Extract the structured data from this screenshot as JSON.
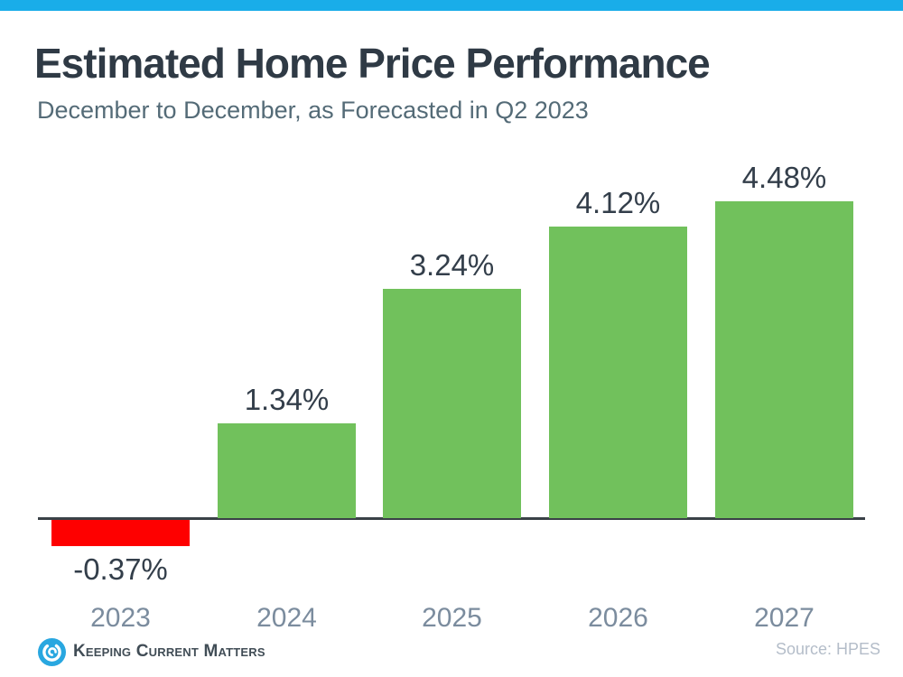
{
  "page": {
    "title": "Estimated Home Price Performance",
    "subtitle": "December to December, as Forecasted in Q2 2023",
    "brand": "Keeping Current Matters",
    "source": "Source: HPES"
  },
  "colors": {
    "accent_bar": "#19ade9",
    "positive": "#71c15c",
    "negative": "#fe0000",
    "title_text": "#2f3a45",
    "subtitle_text": "#546b77",
    "value_text": "#333e4a",
    "axis_label_text": "#7b8c9e",
    "source_text": "#b4bdc9",
    "axis_line": "#3a4147",
    "logo_blue": "#29a7e0",
    "logo_text": "#414d56"
  },
  "chart_data": {
    "type": "bar",
    "title": "Estimated Home Price Performance",
    "subtitle": "December to December, as Forecasted in Q2 2023",
    "categories": [
      "2023",
      "2024",
      "2025",
      "2026",
      "2027"
    ],
    "values": [
      -0.37,
      1.34,
      3.24,
      4.12,
      4.48
    ],
    "value_labels": [
      "-0.37%",
      "1.34%",
      "3.24%",
      "4.12%",
      "4.48%"
    ],
    "bar_colors": [
      "#fe0000",
      "#71c15c",
      "#71c15c",
      "#71c15c",
      "#71c15c"
    ],
    "xlabel": "",
    "ylabel": "",
    "ylim": [
      -0.6,
      5.0
    ],
    "grid": false,
    "legend": null,
    "baseline": 0,
    "source": "Source: HPES"
  }
}
